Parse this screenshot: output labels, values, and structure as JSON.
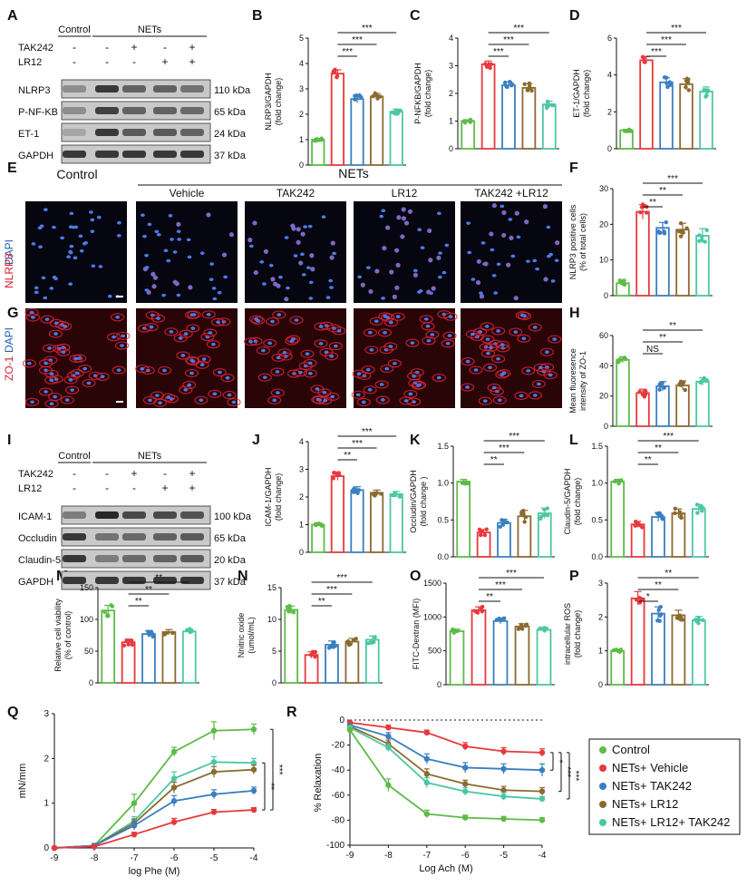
{
  "colors": {
    "control": "#5dbb46",
    "vehicle": "#e8383d",
    "tak242": "#3a7fc1",
    "lr12": "#8b6a2f",
    "combo": "#4cc7a3",
    "dapi_blue": "#1f5fb4",
    "nlrp3_red": "#d4202c",
    "zo1_red": "#d4202c"
  },
  "group_keys": [
    "control",
    "vehicle",
    "tak242",
    "lr12",
    "combo"
  ],
  "panel_letters": [
    "A",
    "B",
    "C",
    "D",
    "E",
    "F",
    "G",
    "H",
    "I",
    "J",
    "K",
    "L",
    "M",
    "N",
    "O",
    "P",
    "Q",
    "R"
  ],
  "western_A": {
    "header": {
      "control": "Control",
      "nets": "NETs"
    },
    "treat_rows": [
      {
        "label": "TAK242",
        "signs": [
          "-",
          "-",
          "+",
          "-",
          "+"
        ]
      },
      {
        "label": "LR12",
        "signs": [
          "-",
          "-",
          "-",
          "+",
          "+"
        ]
      }
    ],
    "bands": [
      {
        "label": "NLRP3",
        "kda": "110 kDa",
        "intensity": [
          0.35,
          0.85,
          0.6,
          0.6,
          0.5
        ]
      },
      {
        "label": "P-NF-KB",
        "kda": "65 kDa",
        "intensity": [
          0.35,
          0.8,
          0.6,
          0.6,
          0.55
        ]
      },
      {
        "label": "ET-1",
        "kda": "24 kDa",
        "intensity": [
          0.2,
          0.85,
          0.65,
          0.65,
          0.6
        ]
      },
      {
        "label": "GAPDH",
        "kda": "37 kDa",
        "intensity": [
          0.85,
          0.85,
          0.85,
          0.85,
          0.85
        ]
      }
    ]
  },
  "western_I": {
    "header": {
      "control": "Control",
      "nets": "NETs"
    },
    "treat_rows": [
      {
        "label": "TAK242",
        "signs": [
          "-",
          "-",
          "+",
          "-",
          "+"
        ]
      },
      {
        "label": "LR12",
        "signs": [
          "-",
          "-",
          "-",
          "+",
          "+"
        ]
      }
    ],
    "bands": [
      {
        "label": "ICAM-1",
        "kda": "100 kDa",
        "intensity": [
          0.45,
          0.95,
          0.75,
          0.75,
          0.7
        ]
      },
      {
        "label": "Occludin",
        "kda": "65 kDa",
        "intensity": [
          0.85,
          0.5,
          0.55,
          0.6,
          0.65
        ]
      },
      {
        "label": "Claudin-5",
        "kda": "20 kDa",
        "intensity": [
          0.85,
          0.45,
          0.55,
          0.6,
          0.65
        ]
      },
      {
        "label": "GAPDH",
        "kda": "37 kDa",
        "intensity": [
          0.85,
          0.85,
          0.85,
          0.85,
          0.85
        ]
      }
    ]
  },
  "micro": {
    "header_control": "Control",
    "header_nets": "NETs",
    "column_labels": [
      "Vehicle",
      "TAK242",
      "LR12",
      "TAK242  +LR12"
    ],
    "row_E": {
      "label_dapi": "DAPI",
      "label_marker": "NLRP3"
    },
    "row_G": {
      "label_dapi": "DAPI",
      "label_marker": "ZO-1"
    }
  },
  "chart_data": [
    {
      "id": "B",
      "type": "bar",
      "ylabel": "NLRP3/GAPDH\n(fold change)",
      "ylim": [
        0,
        5
      ],
      "ticks": [
        0,
        1,
        2,
        3,
        4,
        5
      ],
      "values": [
        1.0,
        3.6,
        2.6,
        2.7,
        2.1
      ],
      "errors": [
        0.05,
        0.15,
        0.15,
        0.12,
        0.1
      ],
      "sig": [
        {
          "label": "***",
          "to": 4
        },
        {
          "label": "***",
          "to": 3
        },
        {
          "label": "***",
          "to": 2
        }
      ]
    },
    {
      "id": "C",
      "type": "bar",
      "ylabel": "P-NFKB/GAPDH\n(fold change)",
      "ylim": [
        0,
        4
      ],
      "ticks": [
        0,
        1,
        2,
        3,
        4
      ],
      "values": [
        1.0,
        3.05,
        2.3,
        2.2,
        1.6
      ],
      "errors": [
        0.05,
        0.12,
        0.12,
        0.15,
        0.12
      ],
      "sig": [
        {
          "label": "***",
          "to": 4
        },
        {
          "label": "***",
          "to": 3
        },
        {
          "label": "***",
          "to": 2
        }
      ]
    },
    {
      "id": "D",
      "type": "bar",
      "ylabel": "ET-1/GAPDH\n(fold change)",
      "ylim": [
        0,
        6
      ],
      "ticks": [
        0,
        2,
        4,
        6
      ],
      "values": [
        1.0,
        4.8,
        3.6,
        3.5,
        3.1
      ],
      "errors": [
        0.05,
        0.2,
        0.25,
        0.3,
        0.25
      ],
      "sig": [
        {
          "label": "***",
          "to": 4
        },
        {
          "label": "***",
          "to": 3
        },
        {
          "label": "***",
          "to": 2
        }
      ]
    },
    {
      "id": "F",
      "type": "bar",
      "ylabel": "NLRP3 positive cells\n(% of total cells)",
      "ylim": [
        0,
        30
      ],
      "ticks": [
        0,
        10,
        20,
        30
      ],
      "values": [
        3.5,
        23.5,
        19.0,
        18.5,
        16.8
      ],
      "errors": [
        0.8,
        2.0,
        1.5,
        1.8,
        2.0
      ],
      "sig": [
        {
          "label": "***",
          "to": 4
        },
        {
          "label": "**",
          "to": 3
        },
        {
          "label": "**",
          "to": 2
        }
      ]
    },
    {
      "id": "H",
      "type": "bar",
      "ylabel": "Mean fluoresence\nintensity of ZO-1",
      "ylim": [
        0,
        60
      ],
      "ticks": [
        0,
        20,
        40,
        60
      ],
      "values": [
        44.0,
        22.0,
        26.5,
        27.0,
        29.5
      ],
      "errors": [
        2.0,
        2.5,
        3.0,
        3.0,
        2.5
      ],
      "sig": [
        {
          "label": "**",
          "to": 4
        },
        {
          "label": "**",
          "to": 3
        },
        {
          "label": "NS",
          "to": 2
        }
      ]
    },
    {
      "id": "J",
      "type": "bar",
      "ylabel": "ICAM-1/GAPDH\n(fold change)",
      "ylim": [
        0,
        4
      ],
      "ticks": [
        0,
        1,
        2,
        3,
        4
      ],
      "values": [
        1.0,
        2.75,
        2.25,
        2.15,
        2.1
      ],
      "errors": [
        0.05,
        0.15,
        0.12,
        0.1,
        0.1
      ],
      "sig": [
        {
          "label": "***",
          "to": 4
        },
        {
          "label": "***",
          "to": 3
        },
        {
          "label": "**",
          "to": 2
        }
      ]
    },
    {
      "id": "K",
      "type": "bar",
      "ylabel": "Occludin/GAPDH\n(fold change  )",
      "ylim": [
        0,
        1.5
      ],
      "ticks": [
        0.0,
        0.5,
        1.0,
        1.5
      ],
      "values": [
        1.02,
        0.33,
        0.46,
        0.55,
        0.59
      ],
      "errors": [
        0.03,
        0.04,
        0.05,
        0.08,
        0.07
      ],
      "sig": [
        {
          "label": "***",
          "to": 4
        },
        {
          "label": "***",
          "to": 3
        },
        {
          "label": "**",
          "to": 2
        }
      ]
    },
    {
      "id": "L",
      "type": "bar",
      "ylabel": "Claudin-5/GAPDH\n(fold change)",
      "ylim": [
        0,
        1.5
      ],
      "ticks": [
        0.0,
        0.5,
        1.0,
        1.5
      ],
      "values": [
        1.02,
        0.44,
        0.54,
        0.59,
        0.65
      ],
      "errors": [
        0.03,
        0.04,
        0.06,
        0.06,
        0.06
      ],
      "sig": [
        {
          "label": "***",
          "to": 4
        },
        {
          "label": "**",
          "to": 3
        },
        {
          "label": "**",
          "to": 2
        }
      ]
    },
    {
      "id": "M",
      "type": "bar",
      "ylabel": "Relative cell viability\n(% of control)",
      "ylim": [
        0,
        150
      ],
      "ticks": [
        0,
        50,
        100,
        150
      ],
      "values": [
        114.0,
        64.0,
        77.0,
        80.0,
        81.0
      ],
      "errors": [
        8.0,
        5.0,
        5.0,
        4.0,
        4.0
      ],
      "sig": [
        {
          "label": "**",
          "to": 4
        },
        {
          "label": "**",
          "to": 3
        },
        {
          "label": "**",
          "to": 2
        }
      ]
    },
    {
      "id": "N",
      "type": "bar",
      "ylabel": "Nnitric oxide\n(umol/mL)",
      "ylim": [
        0,
        15
      ],
      "ticks": [
        0,
        5,
        10,
        15
      ],
      "values": [
        11.5,
        4.4,
        6.0,
        6.5,
        6.8
      ],
      "errors": [
        0.6,
        0.5,
        0.6,
        0.5,
        0.6
      ],
      "sig": [
        {
          "label": "***",
          "to": 4
        },
        {
          "label": "***",
          "to": 3
        },
        {
          "label": "**",
          "to": 2
        }
      ]
    },
    {
      "id": "O",
      "type": "bar",
      "ylabel": "FITC-Dextran (MFI)",
      "ylim": [
        0,
        1500
      ],
      "ticks": [
        0,
        500,
        1000,
        1500
      ],
      "values": [
        790.0,
        1100.0,
        940.0,
        860.0,
        810.0
      ],
      "errors": [
        30.0,
        50.0,
        40.0,
        40.0,
        30.0
      ],
      "sig": [
        {
          "label": "***",
          "to": 4
        },
        {
          "label": "***",
          "to": 3
        },
        {
          "label": "**",
          "to": 2
        }
      ]
    },
    {
      "id": "P",
      "type": "bar",
      "ylabel": "intracellular ROS\n(fold change)",
      "ylim": [
        0,
        3
      ],
      "ticks": [
        0,
        1,
        2,
        3
      ],
      "values": [
        1.0,
        2.55,
        2.1,
        2.05,
        1.9
      ],
      "errors": [
        0.04,
        0.2,
        0.2,
        0.15,
        0.12
      ],
      "sig": [
        {
          "label": "**",
          "to": 4
        },
        {
          "label": "**",
          "to": 3
        },
        {
          "label": "*",
          "to": 2
        }
      ]
    },
    {
      "id": "Q",
      "type": "line",
      "xlabel": "log Phe (M)",
      "ylabel": "mN/mm",
      "x": [
        -9,
        -8,
        -7,
        -6,
        -5,
        -4
      ],
      "xlim": [
        -9,
        -4
      ],
      "ylim": [
        0,
        3
      ],
      "ticks": [
        0,
        1,
        2,
        3
      ],
      "series": [
        {
          "key": "control",
          "values": [
            0,
            0.05,
            1.0,
            2.15,
            2.62,
            2.65
          ],
          "errors": [
            0,
            0.05,
            0.2,
            0.1,
            0.2,
            0.12
          ]
        },
        {
          "key": "combo",
          "values": [
            0,
            0.05,
            0.6,
            1.55,
            1.92,
            1.9
          ],
          "errors": [
            0,
            0.05,
            0.1,
            0.15,
            0.12,
            0.1
          ]
        },
        {
          "key": "lr12",
          "values": [
            0,
            0.05,
            0.55,
            1.35,
            1.7,
            1.75
          ],
          "errors": [
            0,
            0.05,
            0.1,
            0.12,
            0.12,
            0.1
          ]
        },
        {
          "key": "tak242",
          "values": [
            0,
            0.05,
            0.5,
            1.05,
            1.2,
            1.28
          ],
          "errors": [
            0,
            0.05,
            0.1,
            0.12,
            0.1,
            0.08
          ]
        },
        {
          "key": "vehicle",
          "values": [
            0,
            0.03,
            0.3,
            0.58,
            0.8,
            0.85
          ],
          "errors": [
            0,
            0.03,
            0.05,
            0.08,
            0.06,
            0.05
          ]
        }
      ],
      "sig": [
        {
          "label": "**",
          "from": "combo",
          "to": "vehicle"
        },
        {
          "label": "***",
          "from": "control",
          "to": "vehicle"
        }
      ]
    },
    {
      "id": "R",
      "type": "line",
      "xlabel": "Log Ach (M)",
      "ylabel": "% Relaxation",
      "x": [
        -9,
        -8,
        -7,
        -6,
        -5,
        -4
      ],
      "xlim": [
        -9,
        -4
      ],
      "ylim": [
        -100,
        0
      ],
      "ticks": [
        0,
        -20,
        -40,
        -60,
        -80,
        -100
      ],
      "series": [
        {
          "key": "vehicle",
          "values": [
            -2,
            -6,
            -10,
            -21,
            -25,
            -26
          ],
          "errors": [
            1,
            2,
            2,
            3,
            3,
            3
          ]
        },
        {
          "key": "tak242",
          "values": [
            -4,
            -13,
            -31,
            -38,
            -39,
            -40
          ],
          "errors": [
            1,
            3,
            4,
            4,
            4,
            5
          ]
        },
        {
          "key": "lr12",
          "values": [
            -5,
            -19,
            -43,
            -51,
            -56,
            -57
          ],
          "errors": [
            1,
            3,
            4,
            3,
            3,
            3
          ]
        },
        {
          "key": "combo",
          "values": [
            -6,
            -22,
            -50,
            -57,
            -61,
            -63
          ],
          "errors": [
            1,
            3,
            4,
            3,
            3,
            2
          ]
        },
        {
          "key": "control",
          "values": [
            -8,
            -52,
            -75,
            -78,
            -79,
            -80
          ],
          "errors": [
            1,
            5,
            3,
            2,
            2,
            2
          ]
        }
      ],
      "sig": [
        {
          "label": "*",
          "from": "vehicle",
          "to": "tak242"
        },
        {
          "label": "***",
          "from": "vehicle",
          "to": "lr12"
        },
        {
          "label": "***",
          "from": "vehicle",
          "to": "combo"
        }
      ]
    }
  ],
  "legend": {
    "items": [
      {
        "key": "control",
        "label": "Control"
      },
      {
        "key": "vehicle",
        "label": "NETs+ Vehicle"
      },
      {
        "key": "tak242",
        "label": "NETs+ TAK242"
      },
      {
        "key": "lr12",
        "label": "NETs+ LR12"
      },
      {
        "key": "combo",
        "label": "NETs+ LR12+ TAK242"
      }
    ]
  }
}
